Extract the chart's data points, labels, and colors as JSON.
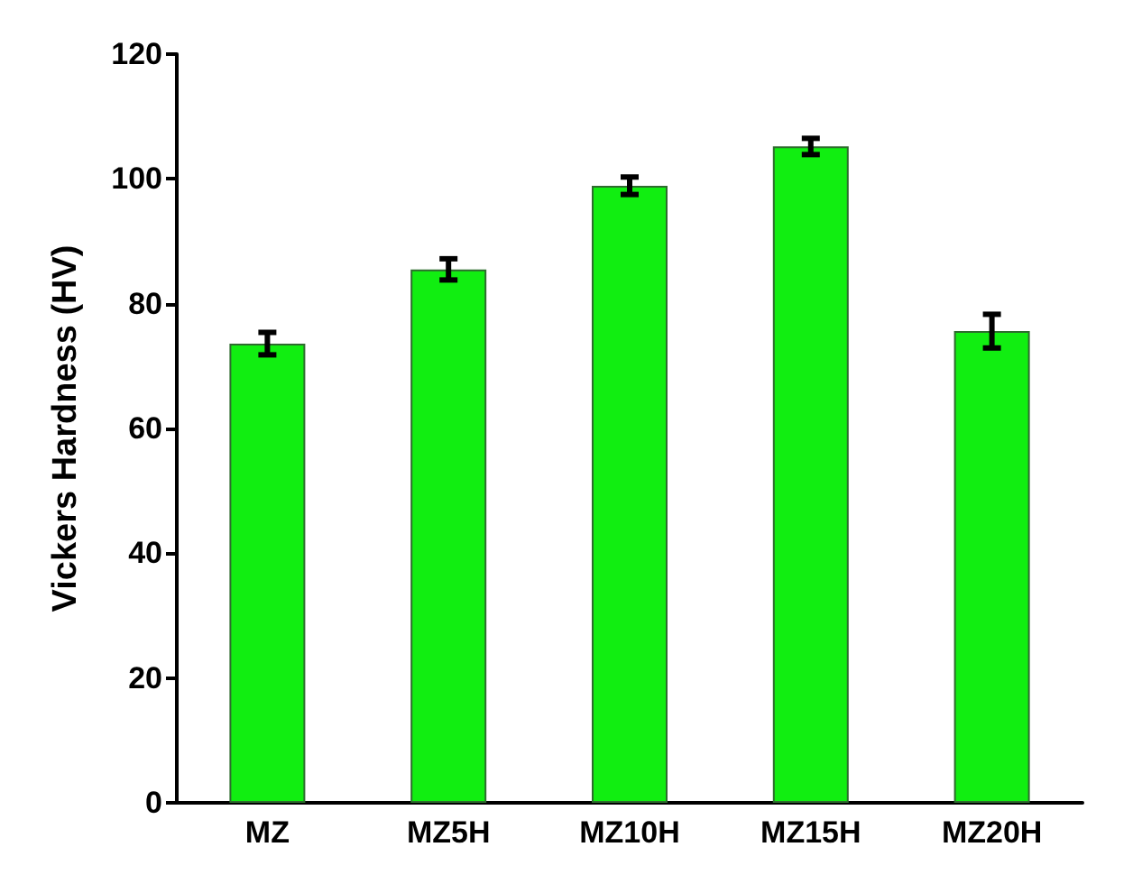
{
  "chart_data": {
    "type": "bar",
    "ylabel": "Vickers Hardness (HV)",
    "categories": [
      "MZ",
      "MZ5H",
      "MZ10H",
      "MZ15H",
      "MZ20H"
    ],
    "values": [
      73.6,
      85.5,
      98.9,
      105.2,
      75.6
    ],
    "errors": [
      1.8,
      1.7,
      1.4,
      1.3,
      2.7
    ],
    "color": "#11ee11",
    "ylim": [
      0,
      120
    ],
    "yticks": [
      0,
      20,
      40,
      60,
      80,
      100,
      120
    ],
    "grid": false
  }
}
